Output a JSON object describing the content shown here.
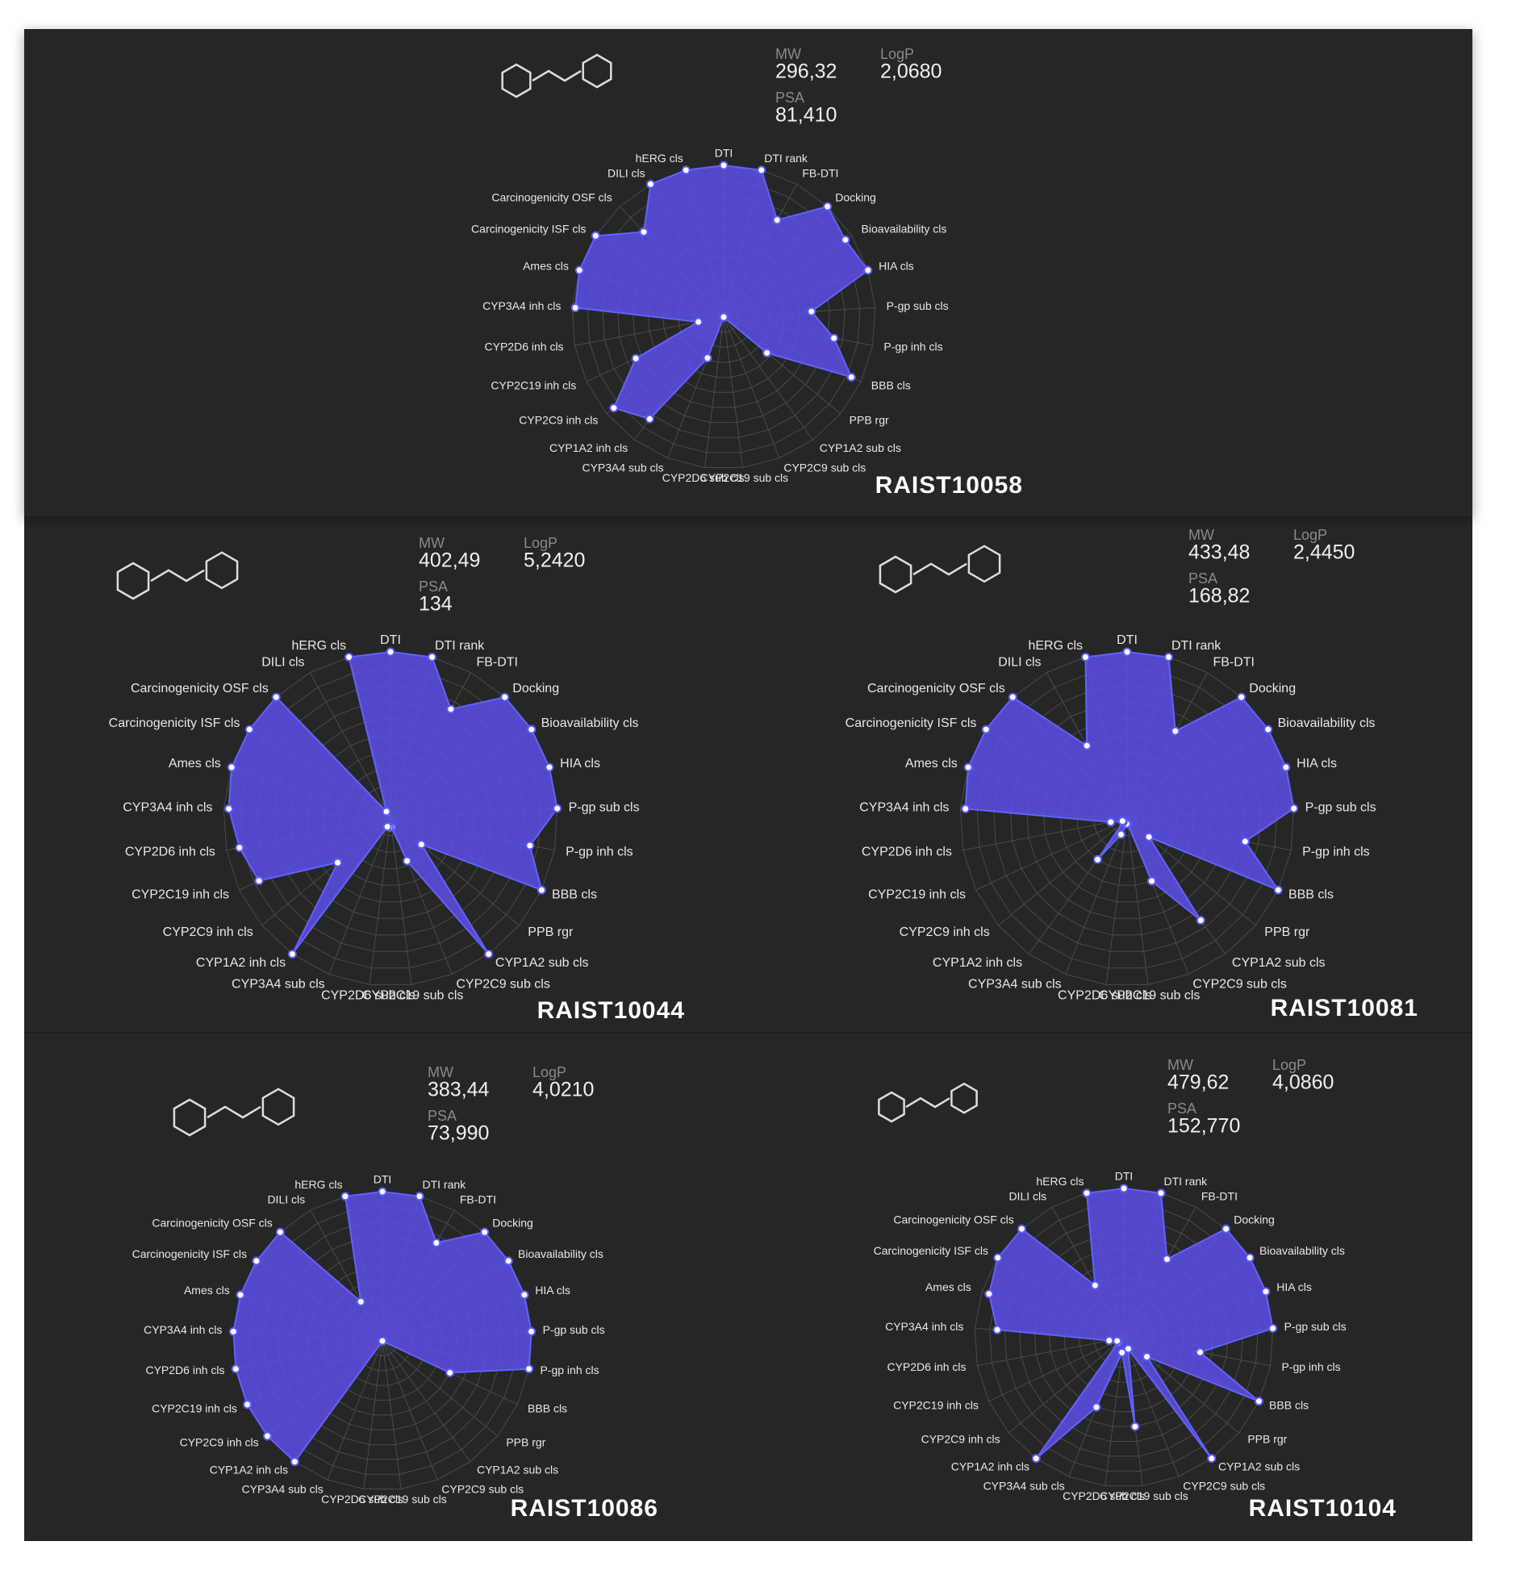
{
  "chart_data": [
    {
      "type": "radar",
      "title": "RAIST10058",
      "color": "#5a4fe6",
      "rlim": [
        0,
        1
      ],
      "properties": [
        {
          "label": "MW",
          "value": "296,32"
        },
        {
          "label": "LogP",
          "value": "2,0680"
        },
        {
          "label": "PSA",
          "value": "81,410"
        }
      ],
      "categories": [
        "DTI",
        "DTI rank",
        "FB-DTI",
        "Docking",
        "Bioavailability cls",
        "HIA cls",
        "P-gp sub cls",
        "P-gp inh cls",
        "BBB cls",
        "PPB rgr",
        "CYP1A2 sub cls",
        "CYP2C9 sub cls",
        "CYP2C19 sub cls",
        "CYP2D6 sub cls",
        "CYP3A4 sub cls",
        "CYP1A2 inh cls",
        "CYP2C9 inh cls",
        "CYP2C19 inh cls",
        "CYP2D6 inh cls",
        "CYP3A4 inh cls",
        "Ames cls",
        "Carcinogenicity ISF cls",
        "Carcinogenicity OSF cls",
        "DILI cls",
        "hERG cls"
      ],
      "values": [
        1.0,
        1.0,
        0.73,
        1.0,
        0.95,
        1.0,
        0.58,
        0.74,
        0.93,
        0.37,
        0,
        0,
        0,
        0,
        0.29,
        0.83,
        0.94,
        0.64,
        0.17,
        0.98,
        1.0,
        1.0,
        0.77,
        1.0,
        1.0
      ]
    },
    {
      "type": "radar",
      "title": "RAIST10044",
      "color": "#5a4fe6",
      "rlim": [
        0,
        1
      ],
      "properties": [
        {
          "label": "MW",
          "value": "402,49"
        },
        {
          "label": "LogP",
          "value": "5,2420"
        },
        {
          "label": "PSA",
          "value": "134"
        }
      ],
      "categories": [
        "DTI",
        "DTI rank",
        "FB-DTI",
        "Docking",
        "Bioavailability cls",
        "HIA cls",
        "P-gp sub cls",
        "P-gp inh cls",
        "BBB cls",
        "PPB rgr",
        "CYP1A2 sub cls",
        "CYP2C9 sub cls",
        "CYP2C19 sub cls",
        "CYP2D6 sub cls",
        "CYP3A4 sub cls",
        "CYP1A2 inh cls",
        "CYP2C9 inh cls",
        "CYP2C19 inh cls",
        "CYP2D6 inh cls",
        "CYP3A4 inh cls",
        "Ames cls",
        "Carcinogenicity ISF cls",
        "Carcinogenicity OSF cls",
        "DILI cls",
        "hERG cls"
      ],
      "values": [
        1.0,
        1.0,
        0.75,
        1.0,
        1.0,
        1.0,
        1.0,
        0.85,
        1.0,
        0.24,
        1.0,
        0.27,
        0.05,
        0.05,
        0.05,
        1.0,
        0.41,
        0.87,
        0.92,
        0.97,
        1.0,
        1.0,
        1.0,
        0.05,
        1.0
      ]
    },
    {
      "type": "radar",
      "title": "RAIST10081",
      "color": "#5a4fe6",
      "rlim": [
        0,
        1
      ],
      "properties": [
        {
          "label": "MW",
          "value": "433,48"
        },
        {
          "label": "LogP",
          "value": "2,4450"
        },
        {
          "label": "PSA",
          "value": "168,82"
        }
      ],
      "categories": [
        "DTI",
        "DTI rank",
        "FB-DTI",
        "Docking",
        "Bioavailability cls",
        "HIA cls",
        "P-gp sub cls",
        "P-gp inh cls",
        "BBB cls",
        "PPB rgr",
        "CYP1A2 sub cls",
        "CYP2C9 sub cls",
        "CYP2C19 sub cls",
        "CYP2D6 sub cls",
        "CYP3A4 sub cls",
        "CYP1A2 inh cls",
        "CYP2C9 inh cls",
        "CYP2C19 inh cls",
        "CYP2D6 inh cls",
        "CYP3A4 inh cls",
        "Ames cls",
        "Carcinogenicity ISF cls",
        "Carcinogenicity OSF cls",
        "DILI cls",
        "hERG cls"
      ],
      "values": [
        1.0,
        1.0,
        0.6,
        1.0,
        1.0,
        1.0,
        1.0,
        0.72,
        1.0,
        0.17,
        0.75,
        0.4,
        0.03,
        0.03,
        0.1,
        0.3,
        0.03,
        0.03,
        0.1,
        0.97,
        1.0,
        1.0,
        1.0,
        0.5,
        1.0
      ]
    },
    {
      "type": "radar",
      "title": "RAIST10086",
      "color": "#5a4fe6",
      "rlim": [
        0,
        1
      ],
      "properties": [
        {
          "label": "MW",
          "value": "383,44"
        },
        {
          "label": "LogP",
          "value": "4,0210"
        },
        {
          "label": "PSA",
          "value": "73,990"
        }
      ],
      "categories": [
        "DTI",
        "DTI rank",
        "FB-DTI",
        "Docking",
        "Bioavailability cls",
        "HIA cls",
        "P-gp sub cls",
        "P-gp inh cls",
        "BBB cls",
        "PPB rgr",
        "CYP1A2 sub cls",
        "CYP2C9 sub cls",
        "CYP2C19 sub cls",
        "CYP2D6 sub cls",
        "CYP3A4 sub cls",
        "CYP1A2 inh cls",
        "CYP2C9 inh cls",
        "CYP2C19 inh cls",
        "CYP2D6 inh cls",
        "CYP3A4 inh cls",
        "Ames cls",
        "Carcinogenicity ISF cls",
        "Carcinogenicity OSF cls",
        "DILI cls",
        "hERG cls"
      ],
      "values": [
        1.0,
        1.0,
        0.75,
        1.0,
        1.0,
        1.0,
        1.0,
        1.0,
        0.5,
        0,
        0,
        0,
        0,
        0,
        0,
        1.0,
        1.0,
        1.0,
        1.0,
        1.0,
        1.0,
        1.0,
        1.0,
        0.3,
        1.0
      ]
    },
    {
      "type": "radar",
      "title": "RAIST10104",
      "color": "#5a4fe6",
      "rlim": [
        0,
        1
      ],
      "properties": [
        {
          "label": "MW",
          "value": "479,62"
        },
        {
          "label": "LogP",
          "value": "4,0860"
        },
        {
          "label": "PSA",
          "value": "152,770"
        }
      ],
      "categories": [
        "DTI",
        "DTI rank",
        "FB-DTI",
        "Docking",
        "Bioavailability cls",
        "HIA cls",
        "P-gp sub cls",
        "P-gp inh cls",
        "BBB cls",
        "PPB rgr",
        "CYP1A2 sub cls",
        "CYP2C9 sub cls",
        "CYP2C19 sub cls",
        "CYP2D6 sub cls",
        "CYP3A4 sub cls",
        "CYP1A2 inh cls",
        "CYP2C9 inh cls",
        "CYP2C19 inh cls",
        "CYP2D6 inh cls",
        "CYP3A4 inh cls",
        "Ames cls",
        "Carcinogenicity ISF cls",
        "Carcinogenicity OSF cls",
        "DILI cls",
        "hERG cls"
      ],
      "values": [
        1.0,
        1.0,
        0.6,
        1.0,
        1.0,
        1.0,
        1.0,
        0.52,
        1.0,
        0.2,
        1.0,
        0.08,
        0.6,
        0.1,
        0.5,
        1.0,
        0.05,
        0.05,
        0.1,
        0.85,
        0.95,
        1.0,
        1.0,
        0.4,
        1.0
      ]
    }
  ]
}
